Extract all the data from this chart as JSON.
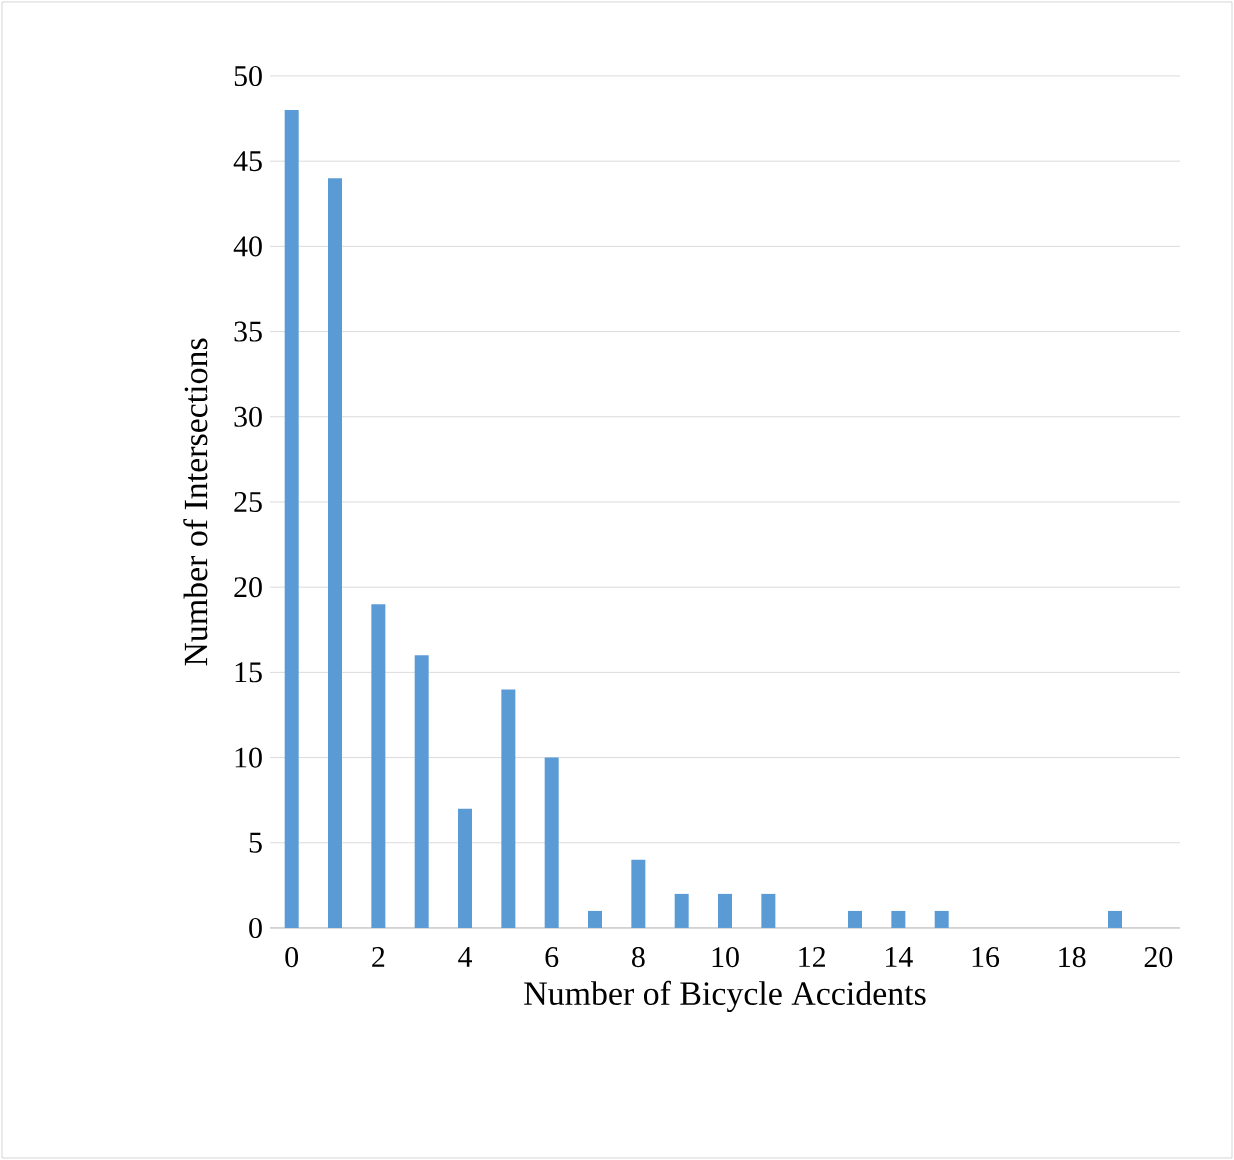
{
  "chart_data": {
    "type": "bar",
    "xlabel": "Number of Bicycle Accidents",
    "ylabel": "Number of Intersections",
    "categories": [
      "0",
      null,
      "2",
      null,
      "4",
      null,
      "6",
      null,
      "8",
      null,
      "10",
      null,
      "12",
      null,
      "14",
      null,
      "16",
      null,
      "18",
      null,
      "20"
    ],
    "values": [
      48,
      44,
      19,
      16,
      7,
      14,
      10,
      1,
      4,
      2,
      2,
      2,
      0,
      1,
      1,
      1,
      0,
      0,
      0,
      1,
      0
    ],
    "color": "#5b9bd5",
    "ylim": [
      0,
      50
    ],
    "yticks": [
      0,
      5,
      10,
      15,
      20,
      25,
      30,
      35,
      40,
      45,
      50
    ],
    "grid": "y"
  }
}
